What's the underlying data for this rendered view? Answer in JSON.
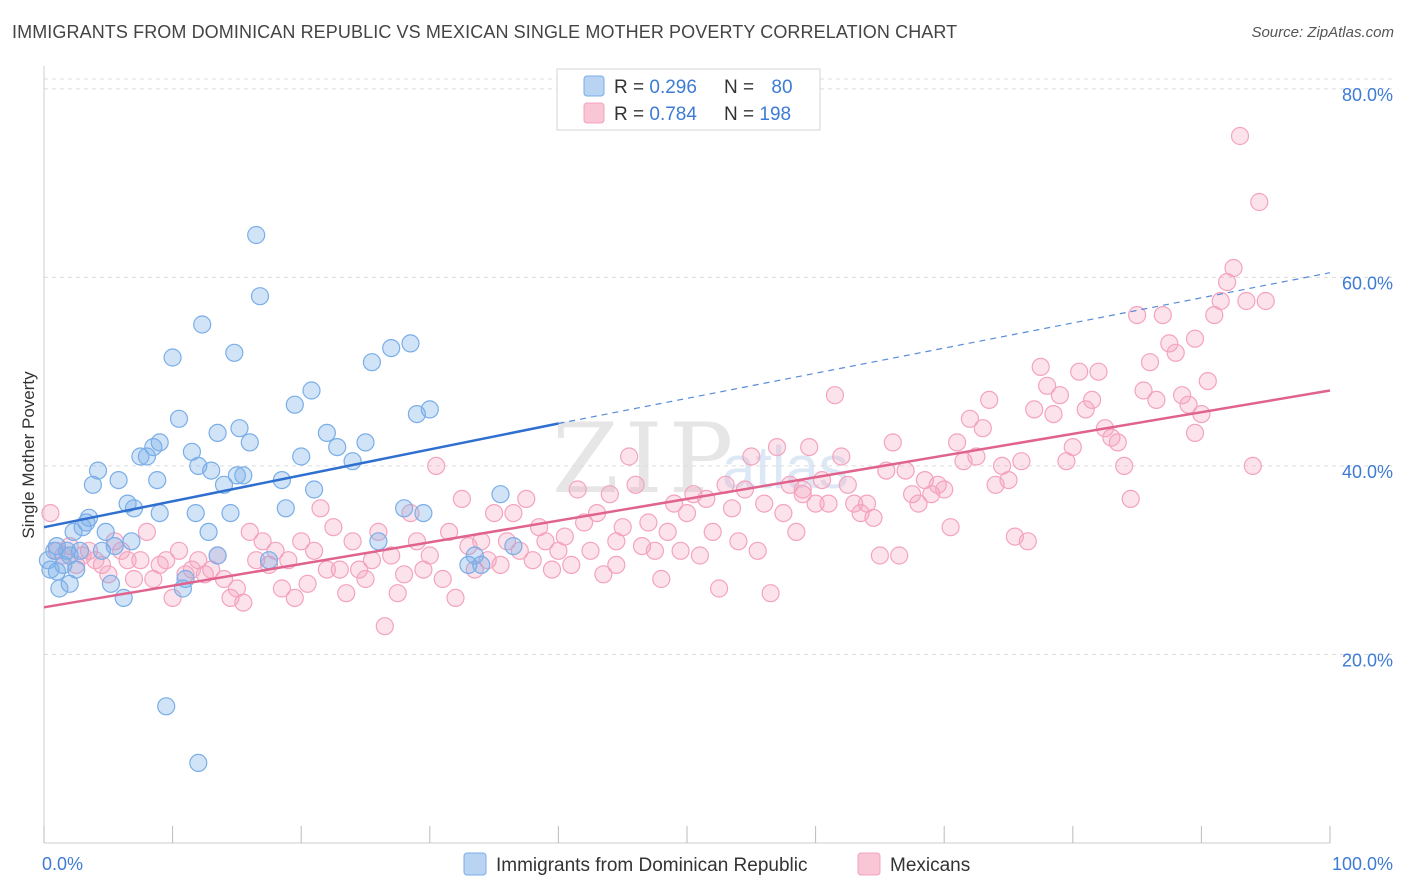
{
  "header": {
    "title": "IMMIGRANTS FROM DOMINICAN REPUBLIC VS MEXICAN SINGLE MOTHER POVERTY CORRELATION CHART",
    "source": "Source: ZipAtlas.com"
  },
  "chart_data": {
    "type": "scatter",
    "title": "IMMIGRANTS FROM DOMINICAN REPUBLIC VS MEXICAN SINGLE MOTHER POVERTY CORRELATION CHART",
    "xlabel": "",
    "ylabel": "Single Mother Poverty",
    "xlim": [
      0,
      100
    ],
    "ylim": [
      0,
      82
    ],
    "x_tick_labels": [
      "0.0%",
      "100.0%"
    ],
    "y_ticks": [
      20,
      40,
      60,
      80
    ],
    "y_tick_labels": [
      "20.0%",
      "40.0%",
      "60.0%",
      "80.0%"
    ],
    "grid": true,
    "watermark": [
      "ZIP",
      "atlas"
    ],
    "legend": {
      "position": "top-center",
      "entries": [
        {
          "r_label": "R = ",
          "r": "0.296",
          "n_label": "N = ",
          "n": "80"
        },
        {
          "r_label": "R = ",
          "r": "0.784",
          "n_label": "N = ",
          "n": "198"
        }
      ]
    },
    "series": [
      {
        "name": "Immigrants from Dominican Republic",
        "color": "#7aaee8",
        "line_color": "#2f6fd0",
        "R": 0.296,
        "N": 80,
        "trend": {
          "x0": 0,
          "y0": 33.5,
          "x1": 40,
          "y1": 44.5,
          "dash_x1": 100,
          "dash_y1": 60.5
        },
        "points": [
          [
            0.3,
            30
          ],
          [
            0.5,
            29
          ],
          [
            0.8,
            31
          ],
          [
            1,
            28.8
          ],
          [
            1.2,
            27
          ],
          [
            1.5,
            29.5
          ],
          [
            1.8,
            31
          ],
          [
            2,
            27.5
          ],
          [
            2.3,
            33
          ],
          [
            2.5,
            29
          ],
          [
            2.8,
            31
          ],
          [
            3,
            33.5
          ],
          [
            3.3,
            34
          ],
          [
            3.5,
            34.5
          ],
          [
            3.8,
            38
          ],
          [
            4.2,
            39.5
          ],
          [
            4.5,
            31
          ],
          [
            4.8,
            33
          ],
          [
            5.2,
            27.5
          ],
          [
            5.5,
            31.5
          ],
          [
            5.8,
            38.5
          ],
          [
            6.2,
            26
          ],
          [
            6.5,
            36
          ],
          [
            6.8,
            32
          ],
          [
            7,
            35.5
          ],
          [
            7.5,
            41
          ],
          [
            8,
            41
          ],
          [
            8.5,
            42
          ],
          [
            8.8,
            38.5
          ],
          [
            9,
            42.5
          ],
          [
            9,
            35
          ],
          [
            9.5,
            14.5
          ],
          [
            10,
            51.5
          ],
          [
            10.5,
            45
          ],
          [
            10.8,
            27
          ],
          [
            11,
            28
          ],
          [
            11.5,
            41.5
          ],
          [
            11.8,
            35
          ],
          [
            12,
            40
          ],
          [
            12.3,
            55
          ],
          [
            12,
            8.5
          ],
          [
            12.8,
            33
          ],
          [
            13,
            39.5
          ],
          [
            13.5,
            43.5
          ],
          [
            13.5,
            30.5
          ],
          [
            14,
            38
          ],
          [
            14.5,
            35
          ],
          [
            14.8,
            52
          ],
          [
            15,
            39
          ],
          [
            15.2,
            44
          ],
          [
            15.5,
            39
          ],
          [
            16,
            42.5
          ],
          [
            16.5,
            64.5
          ],
          [
            16.8,
            58
          ],
          [
            17.5,
            30
          ],
          [
            18.5,
            38.5
          ],
          [
            18.8,
            35.5
          ],
          [
            19.5,
            46.5
          ],
          [
            20,
            41
          ],
          [
            20.8,
            48
          ],
          [
            21,
            37.5
          ],
          [
            22,
            43.5
          ],
          [
            22.8,
            42
          ],
          [
            24,
            40.5
          ],
          [
            25,
            42.5
          ],
          [
            25.5,
            51
          ],
          [
            26,
            32
          ],
          [
            27,
            52.5
          ],
          [
            28,
            35.5
          ],
          [
            28.5,
            53
          ],
          [
            29,
            45.5
          ],
          [
            29.5,
            35
          ],
          [
            30,
            46
          ],
          [
            33,
            29.5
          ],
          [
            33.5,
            30.5
          ],
          [
            34,
            29.5
          ],
          [
            35.5,
            37
          ],
          [
            36.5,
            31.5
          ],
          [
            1,
            31.5
          ],
          [
            2,
            30.5
          ]
        ]
      },
      {
        "name": "Mexicans",
        "color": "#f4a3be",
        "line_color": "#e0638e",
        "R": 0.784,
        "N": 198,
        "trend": {
          "x0": 0,
          "y0": 25,
          "x1": 100,
          "y1": 48
        },
        "points": [
          [
            0.5,
            35
          ],
          [
            1,
            31
          ],
          [
            1.5,
            30.5
          ],
          [
            2,
            31.5
          ],
          [
            2.5,
            29.5
          ],
          [
            3,
            30.5
          ],
          [
            3.5,
            31
          ],
          [
            4,
            30
          ],
          [
            4.5,
            29.5
          ],
          [
            5,
            28.5
          ],
          [
            5.5,
            32
          ],
          [
            6,
            31
          ],
          [
            6.5,
            30
          ],
          [
            7,
            28
          ],
          [
            7.5,
            30
          ],
          [
            8,
            33
          ],
          [
            8.5,
            28
          ],
          [
            9,
            29.5
          ],
          [
            9.5,
            30
          ],
          [
            10,
            26
          ],
          [
            10.5,
            31
          ],
          [
            11,
            28.5
          ],
          [
            11.5,
            29
          ],
          [
            12,
            30
          ],
          [
            12.5,
            28.5
          ],
          [
            13,
            29
          ],
          [
            13.5,
            30.5
          ],
          [
            14,
            28
          ],
          [
            14.5,
            26
          ],
          [
            15,
            27
          ],
          [
            15.5,
            25.5
          ],
          [
            16,
            33
          ],
          [
            16.5,
            30
          ],
          [
            17,
            32
          ],
          [
            17.5,
            29.5
          ],
          [
            18,
            31
          ],
          [
            18.5,
            27
          ],
          [
            19,
            30
          ],
          [
            19.5,
            26
          ],
          [
            20,
            32
          ],
          [
            20.5,
            27.5
          ],
          [
            21,
            31
          ],
          [
            21.5,
            35.5
          ],
          [
            22,
            29
          ],
          [
            22.5,
            33.5
          ],
          [
            23,
            29
          ],
          [
            23.5,
            26.5
          ],
          [
            24,
            32
          ],
          [
            24.5,
            29
          ],
          [
            25,
            28
          ],
          [
            25.5,
            30
          ],
          [
            26,
            33
          ],
          [
            26.5,
            23
          ],
          [
            27,
            30.5
          ],
          [
            27.5,
            26.5
          ],
          [
            28,
            28.5
          ],
          [
            28.5,
            35
          ],
          [
            29,
            32
          ],
          [
            29.5,
            29
          ],
          [
            30,
            30.5
          ],
          [
            30.5,
            40
          ],
          [
            31,
            28
          ],
          [
            31.5,
            33
          ],
          [
            32,
            26
          ],
          [
            32.5,
            36.5
          ],
          [
            33,
            31.5
          ],
          [
            33.5,
            29
          ],
          [
            34,
            32
          ],
          [
            34.5,
            30
          ],
          [
            35,
            35
          ],
          [
            35.5,
            29.5
          ],
          [
            36,
            32
          ],
          [
            36.5,
            35
          ],
          [
            37,
            31
          ],
          [
            37.5,
            36.5
          ],
          [
            38,
            30
          ],
          [
            38.5,
            33.5
          ],
          [
            39,
            32
          ],
          [
            39.5,
            29
          ],
          [
            40,
            31
          ],
          [
            40.5,
            32.5
          ],
          [
            41,
            29.5
          ],
          [
            41.5,
            37.5
          ],
          [
            42,
            34
          ],
          [
            42.5,
            31
          ],
          [
            43,
            35
          ],
          [
            43.5,
            28.5
          ],
          [
            44,
            37
          ],
          [
            44.5,
            32
          ],
          [
            45,
            33.5
          ],
          [
            45.5,
            41
          ],
          [
            46,
            38
          ],
          [
            46.5,
            31.5
          ],
          [
            47,
            34
          ],
          [
            47.5,
            31
          ],
          [
            48,
            28
          ],
          [
            48.5,
            33
          ],
          [
            49,
            36
          ],
          [
            49.5,
            31
          ],
          [
            50,
            35
          ],
          [
            50.5,
            37
          ],
          [
            51,
            30.5
          ],
          [
            51.5,
            36.5
          ],
          [
            52,
            33
          ],
          [
            52.5,
            27
          ],
          [
            53,
            38
          ],
          [
            53.5,
            35.5
          ],
          [
            54,
            32
          ],
          [
            54.5,
            37.5
          ],
          [
            55,
            41
          ],
          [
            55.5,
            31
          ],
          [
            56,
            36
          ],
          [
            56.5,
            26.5
          ],
          [
            57,
            42
          ],
          [
            57.5,
            35
          ],
          [
            58,
            38
          ],
          [
            58.5,
            33
          ],
          [
            59,
            37
          ],
          [
            59.5,
            42
          ],
          [
            60,
            36
          ],
          [
            60.5,
            38.5
          ],
          [
            61,
            36
          ],
          [
            61.5,
            47.5
          ],
          [
            62,
            41
          ],
          [
            62.5,
            38
          ],
          [
            63,
            36
          ],
          [
            63.5,
            35
          ],
          [
            64,
            36
          ],
          [
            64.5,
            34.5
          ],
          [
            65,
            30.5
          ],
          [
            65.5,
            39.5
          ],
          [
            66,
            42.5
          ],
          [
            66.5,
            30.5
          ],
          [
            67,
            39.5
          ],
          [
            67.5,
            37
          ],
          [
            68,
            36
          ],
          [
            68.5,
            38.5
          ],
          [
            69,
            37
          ],
          [
            69.5,
            38
          ],
          [
            70,
            37.5
          ],
          [
            70.5,
            33.5
          ],
          [
            71,
            42.5
          ],
          [
            71.5,
            40.5
          ],
          [
            72,
            45
          ],
          [
            72.5,
            41
          ],
          [
            73,
            44
          ],
          [
            73.5,
            47
          ],
          [
            74,
            38
          ],
          [
            74.5,
            40
          ],
          [
            75,
            38.5
          ],
          [
            75.5,
            32.5
          ],
          [
            76,
            40.5
          ],
          [
            76.5,
            32
          ],
          [
            77,
            46
          ],
          [
            77.5,
            50.5
          ],
          [
            78,
            48.5
          ],
          [
            78.5,
            45.5
          ],
          [
            79,
            47.5
          ],
          [
            79.5,
            40.5
          ],
          [
            80,
            42
          ],
          [
            80.5,
            50
          ],
          [
            81,
            46
          ],
          [
            81.5,
            47
          ],
          [
            82,
            50
          ],
          [
            82.5,
            44
          ],
          [
            83,
            43
          ],
          [
            83.5,
            42.5
          ],
          [
            84,
            40
          ],
          [
            84.5,
            36.5
          ],
          [
            85,
            56
          ],
          [
            85.5,
            48
          ],
          [
            86,
            51
          ],
          [
            86.5,
            47
          ],
          [
            87,
            56
          ],
          [
            87.5,
            53
          ],
          [
            88,
            52
          ],
          [
            88.5,
            47.5
          ],
          [
            89,
            46.5
          ],
          [
            89.5,
            53.5
          ],
          [
            90,
            45.5
          ],
          [
            90.5,
            49
          ],
          [
            91,
            56
          ],
          [
            91.5,
            57.5
          ],
          [
            92,
            59.5
          ],
          [
            92.5,
            61
          ],
          [
            93,
            75
          ],
          [
            93.5,
            57.5
          ],
          [
            94,
            40
          ],
          [
            94.5,
            68
          ],
          [
            95,
            57.5
          ],
          [
            89.5,
            43.5
          ],
          [
            59,
            37.5
          ],
          [
            44.5,
            29.5
          ]
        ]
      }
    ]
  }
}
